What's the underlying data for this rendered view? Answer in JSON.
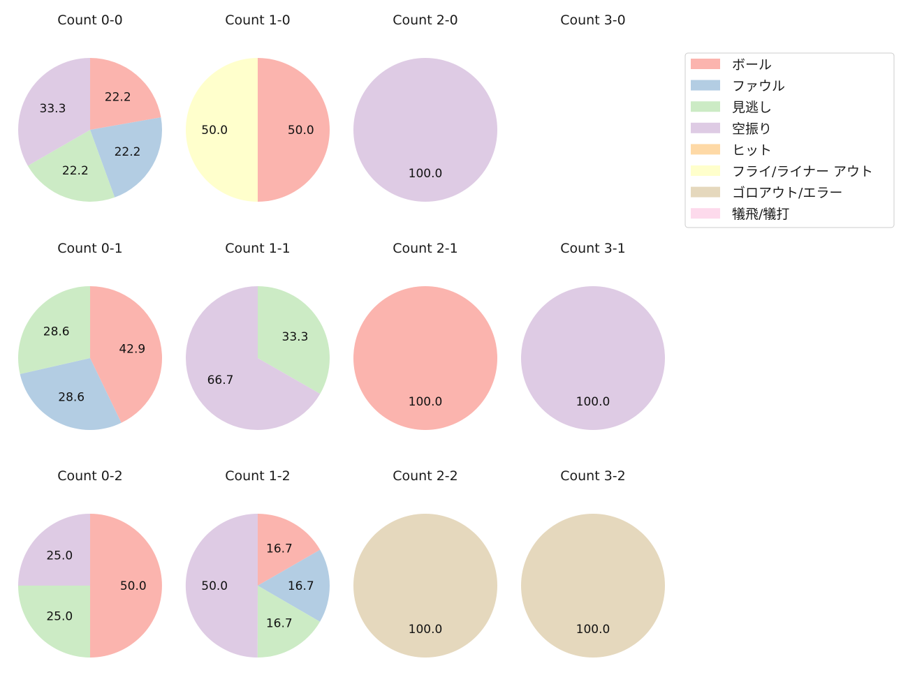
{
  "legend": [
    {
      "label": "ボール",
      "color": "#FBB4AE"
    },
    {
      "label": "ファウル",
      "color": "#B3CDE3"
    },
    {
      "label": "見逃し",
      "color": "#CCEBC5"
    },
    {
      "label": "空振り",
      "color": "#DECBE4"
    },
    {
      "label": "ヒット",
      "color": "#FED9A6"
    },
    {
      "label": "フライ/ライナー アウト",
      "color": "#FFFFCC"
    },
    {
      "label": "ゴロアウト/エラー",
      "color": "#E5D8BD"
    },
    {
      "label": "犠飛/犠打",
      "color": "#FDDAEC"
    }
  ],
  "chart_data": [
    {
      "type": "pie",
      "title": "Count 0-0",
      "slices": [
        {
          "category": "ボール",
          "value": 22.2
        },
        {
          "category": "ファウル",
          "value": 22.2
        },
        {
          "category": "見逃し",
          "value": 22.2
        },
        {
          "category": "空振り",
          "value": 33.3
        }
      ]
    },
    {
      "type": "pie",
      "title": "Count 1-0",
      "slices": [
        {
          "category": "ボール",
          "value": 50.0
        },
        {
          "category": "フライ/ライナー アウト",
          "value": 50.0
        }
      ]
    },
    {
      "type": "pie",
      "title": "Count 2-0",
      "slices": [
        {
          "category": "空振り",
          "value": 100.0
        }
      ]
    },
    {
      "type": "pie",
      "title": "Count 3-0",
      "slices": []
    },
    {
      "type": "pie",
      "title": "Count 0-1",
      "slices": [
        {
          "category": "ボール",
          "value": 42.9
        },
        {
          "category": "ファウル",
          "value": 28.6
        },
        {
          "category": "見逃し",
          "value": 28.6
        }
      ]
    },
    {
      "type": "pie",
      "title": "Count 1-1",
      "slices": [
        {
          "category": "見逃し",
          "value": 33.3
        },
        {
          "category": "空振り",
          "value": 66.7
        }
      ]
    },
    {
      "type": "pie",
      "title": "Count 2-1",
      "slices": [
        {
          "category": "ボール",
          "value": 100.0
        }
      ]
    },
    {
      "type": "pie",
      "title": "Count 3-1",
      "slices": [
        {
          "category": "空振り",
          "value": 100.0
        }
      ]
    },
    {
      "type": "pie",
      "title": "Count 0-2",
      "slices": [
        {
          "category": "ボール",
          "value": 50.0
        },
        {
          "category": "見逃し",
          "value": 25.0
        },
        {
          "category": "空振り",
          "value": 25.0
        }
      ]
    },
    {
      "type": "pie",
      "title": "Count 1-2",
      "slices": [
        {
          "category": "ボール",
          "value": 16.7
        },
        {
          "category": "ファウル",
          "value": 16.7
        },
        {
          "category": "見逃し",
          "value": 16.7
        },
        {
          "category": "空振り",
          "value": 50.0
        }
      ]
    },
    {
      "type": "pie",
      "title": "Count 2-2",
      "slices": [
        {
          "category": "ゴロアウト/エラー",
          "value": 100.0
        }
      ]
    },
    {
      "type": "pie",
      "title": "Count 3-2",
      "slices": [
        {
          "category": "ゴロアウト/エラー",
          "value": 100.0
        }
      ]
    }
  ]
}
